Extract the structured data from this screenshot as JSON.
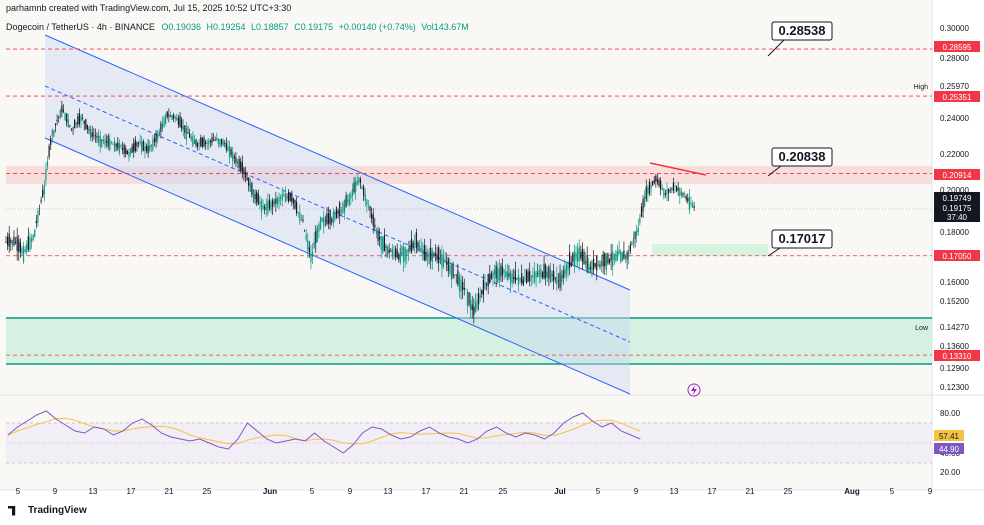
{
  "header": {
    "author_line": "parhamnb created with TradingView.com, Jul 15, 2025 10:52 UTC+3:30",
    "symbol": "Dogecoin / TetherUS · 4h · BINANCE",
    "open": "O0.19036",
    "high": "H0.19254",
    "low": "L0.18857",
    "close": "C0.19175",
    "change": "+0.00140 (+0.74%)",
    "volume": "Vol143.67M"
  },
  "footer": {
    "brand": "TradingView"
  },
  "colors": {
    "up": "#089981",
    "down": "#131722",
    "channel": "#2962ff",
    "resistance": "#f23645",
    "support_zone": "#c8efd9",
    "rsi": "#7e57c2",
    "rsi_ma": "#f5c242"
  },
  "chart_data": {
    "type": "candlestick",
    "price_axis": {
      "ticks": [
        "0.30000",
        "0.28000",
        "0.25970",
        "0.24000",
        "0.22000",
        "0.20000",
        "0.18000",
        "0.16000",
        "0.15200",
        "0.14270",
        "0.13600",
        "0.12900",
        "0.12300"
      ],
      "side_labels": [
        {
          "text": "High",
          "value": 0.2597
        },
        {
          "text": "Low",
          "value": 0.1427
        }
      ],
      "highlighted_labels": [
        {
          "text": "0.28595",
          "color": "#f23645"
        },
        {
          "text": "0.25351",
          "color": "#f23645"
        },
        {
          "text": "0.20914",
          "color": "#f23645"
        },
        {
          "text": "0.19749",
          "color": "#131722"
        },
        {
          "text": "0.19175",
          "color": "#131722"
        },
        {
          "text": "37:40",
          "color": "#131722"
        },
        {
          "text": "0.17050",
          "color": "#f23645"
        },
        {
          "text": "0.13310",
          "color": "#f23645"
        }
      ]
    },
    "x_axis_labels": [
      "5",
      "9",
      "13",
      "17",
      "21",
      "25",
      "Jun",
      "5",
      "9",
      "13",
      "17",
      "21",
      "25",
      "Jul",
      "5",
      "9",
      "13",
      "17",
      "21",
      "25",
      "Aug",
      "5",
      "9"
    ],
    "callouts": [
      "0.28538",
      "0.20838",
      "0.17017"
    ],
    "resistance_lines": [
      0.28595,
      0.25351,
      0.20914,
      0.1705,
      0.1331
    ],
    "price_path": [
      [
        "May 3",
        0.176
      ],
      [
        "May 6",
        0.172
      ],
      [
        "May 7",
        0.178
      ],
      [
        "May 8",
        0.198
      ],
      [
        "May 9",
        0.232
      ],
      [
        "May 10",
        0.245
      ],
      [
        "May 11",
        0.234
      ],
      [
        "May 12",
        0.24
      ],
      [
        "May 13",
        0.232
      ],
      [
        "May 14",
        0.228
      ],
      [
        "May 15",
        0.226
      ],
      [
        "May 16",
        0.224
      ],
      [
        "May 17",
        0.22
      ],
      [
        "May 18",
        0.226
      ],
      [
        "May 19",
        0.222
      ],
      [
        "May 20",
        0.23
      ],
      [
        "May 21",
        0.242
      ],
      [
        "May 22",
        0.24
      ],
      [
        "May 23",
        0.232
      ],
      [
        "May 24",
        0.226
      ],
      [
        "May 25",
        0.226
      ],
      [
        "May 26",
        0.228
      ],
      [
        "May 27",
        0.226
      ],
      [
        "May 28",
        0.218
      ],
      [
        "May 29",
        0.21
      ],
      [
        "May 30",
        0.198
      ],
      [
        "May 31",
        0.192
      ],
      [
        "Jun 1",
        0.193
      ],
      [
        "Jun 2",
        0.197
      ],
      [
        "Jun 3",
        0.196
      ],
      [
        "Jun 4",
        0.186
      ],
      [
        "Jun 5",
        0.17
      ],
      [
        "Jun 6",
        0.185
      ],
      [
        "Jun 7",
        0.186
      ],
      [
        "Jun 8",
        0.19
      ],
      [
        "Jun 9",
        0.196
      ],
      [
        "Jun 10",
        0.206
      ],
      [
        "Jun 11",
        0.192
      ],
      [
        "Jun 12",
        0.178
      ],
      [
        "Jun 13",
        0.173
      ],
      [
        "Jun 14",
        0.171
      ],
      [
        "Jun 15",
        0.172
      ],
      [
        "Jun 16",
        0.176
      ],
      [
        "Jun 17",
        0.17
      ],
      [
        "Jun 18",
        0.171
      ],
      [
        "Jun 19",
        0.168
      ],
      [
        "Jun 20",
        0.163
      ],
      [
        "Jun 21",
        0.157
      ],
      [
        "Jun 22",
        0.148
      ],
      [
        "Jun 23",
        0.157
      ],
      [
        "Jun 24",
        0.163
      ],
      [
        "Jun 25",
        0.164
      ],
      [
        "Jun 26",
        0.162
      ],
      [
        "Jun 27",
        0.161
      ],
      [
        "Jun 28",
        0.162
      ],
      [
        "Jun 29",
        0.164
      ],
      [
        "Jun 30",
        0.163
      ],
      [
        "Jul 1",
        0.16
      ],
      [
        "Jul 2",
        0.168
      ],
      [
        "Jul 3",
        0.172
      ],
      [
        "Jul 4",
        0.166
      ],
      [
        "Jul 5",
        0.167
      ],
      [
        "Jul 6",
        0.169
      ],
      [
        "Jul 7",
        0.171
      ],
      [
        "Jul 8",
        0.17
      ],
      [
        "Jul 9",
        0.18
      ],
      [
        "Jul 10",
        0.198
      ],
      [
        "Jul 11",
        0.206
      ],
      [
        "Jul 12",
        0.198
      ],
      [
        "Jul 13",
        0.202
      ],
      [
        "Jul 14",
        0.197
      ],
      [
        "Jul 15",
        0.19175
      ]
    ],
    "rsi": {
      "ticks": [
        "80.00",
        "60.00",
        "40.00",
        "20.00"
      ],
      "values": [
        "57.41",
        "44.90"
      ],
      "series": [
        48,
        56,
        62,
        68,
        72,
        64,
        58,
        52,
        50,
        56,
        54,
        48,
        52,
        60,
        64,
        58,
        50,
        46,
        44,
        42,
        44,
        40,
        36,
        34,
        44,
        60,
        52,
        44,
        40,
        42,
        44,
        42,
        50,
        42,
        36,
        30,
        38,
        50,
        56,
        54,
        48,
        44,
        46,
        52,
        56,
        50,
        46,
        44,
        40,
        44,
        52,
        56,
        50,
        46,
        50,
        48,
        44,
        50,
        60,
        66,
        70,
        62,
        56,
        60,
        52,
        48,
        44
      ]
    }
  }
}
